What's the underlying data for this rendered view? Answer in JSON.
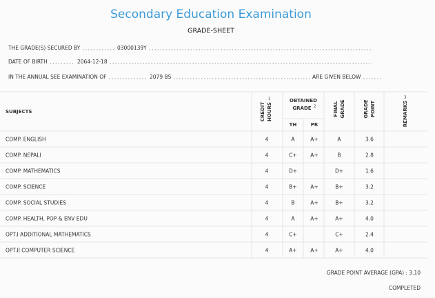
{
  "header": {
    "title": "Secondary Education Examination",
    "subtitle": "GRADE-SHEET"
  },
  "info": [
    {
      "label": "THE GRADE(S) SECURED BY",
      "value": "03000139Y"
    },
    {
      "label": "DATE OF BIRTH",
      "value": "2064-12-18"
    },
    {
      "label": "IN THE ANNUAL SEE EXAMINATION OF",
      "value": "2079 BS",
      "suffix": "ARE GIVEN BELOW"
    }
  ],
  "table": {
    "headers": {
      "subjects": "SUBJECTS",
      "credit": [
        "CREDIT",
        "HOURS"
      ],
      "credit_note": "1",
      "obtained": [
        "OBTAINED",
        "GRADE"
      ],
      "obtained_note": "2",
      "th": "TH",
      "pr": "PR",
      "final": [
        "FINAL",
        "GRADE"
      ],
      "point": [
        "GRADE",
        "POINT"
      ],
      "remarks": "REMARKS",
      "remarks_note": "3"
    },
    "rows": [
      [
        "COMP. ENGLISH",
        "4",
        "A",
        "A+",
        "A",
        "3.6"
      ],
      [
        "COMP. NEPALI",
        "4",
        "C+",
        "A+",
        "B",
        "2.8"
      ],
      [
        "COMP. MATHEMATICS",
        "4",
        "D+",
        "",
        "D+",
        "1.6"
      ],
      [
        "COMP. SCIENCE",
        "4",
        "B+",
        "A+",
        "B+",
        "3.2"
      ],
      [
        "COMP. SOCIAL STUDIES",
        "4",
        "B",
        "A+",
        "B+",
        "3.2"
      ],
      [
        "COMP. HEALTH, POP & ENV EDU",
        "4",
        "A",
        "A+",
        "A+",
        "4.0"
      ],
      [
        "OPT.I ADDITIONAL MATHEMATICS",
        "4",
        "C+",
        "",
        "C+",
        "2.4"
      ],
      [
        "OPT.II COMPUTER SCIENCE",
        "4",
        "A+",
        "A+",
        "A+",
        "4.0"
      ]
    ]
  },
  "footer": {
    "gpa": "GRADE POINT AVERAGE (GPA) : 3.10",
    "status": "COMPLETED"
  }
}
